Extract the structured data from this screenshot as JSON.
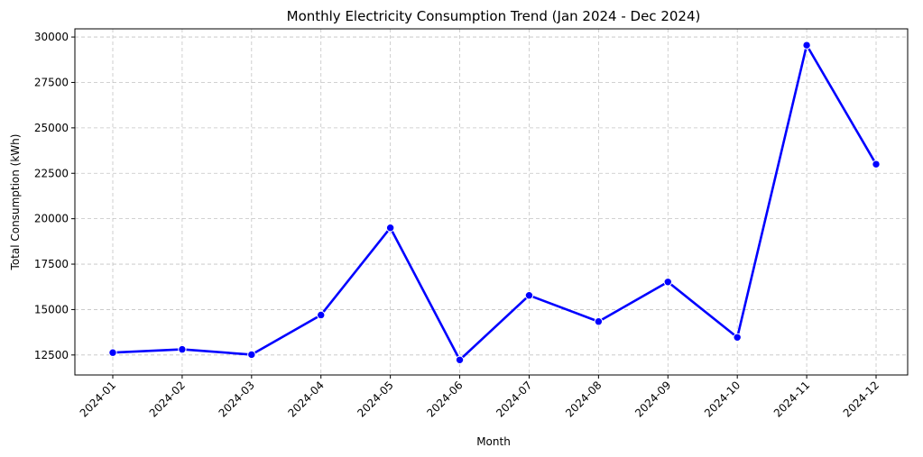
{
  "chart_data": {
    "type": "line",
    "title": "Monthly Electricity Consumption Trend (Jan 2024 - Dec 2024)",
    "xlabel": "Month",
    "ylabel": "Total Consumption (kWh)",
    "categories": [
      "2024-01",
      "2024-02",
      "2024-03",
      "2024-04",
      "2024-05",
      "2024-06",
      "2024-07",
      "2024-08",
      "2024-09",
      "2024-10",
      "2024-11",
      "2024-12"
    ],
    "series": [
      {
        "values": [
          12630,
          12810,
          12520,
          14700,
          19500,
          12230,
          15780,
          14340,
          16520,
          13470,
          29550,
          23000
        ],
        "color": "#0000ff"
      }
    ],
    "yticks": [
      12500,
      15000,
      17500,
      20000,
      22500,
      25000,
      27500,
      30000
    ],
    "ylim": [
      11400,
      30450
    ],
    "grid": true,
    "xtick_rotation": 45
  }
}
